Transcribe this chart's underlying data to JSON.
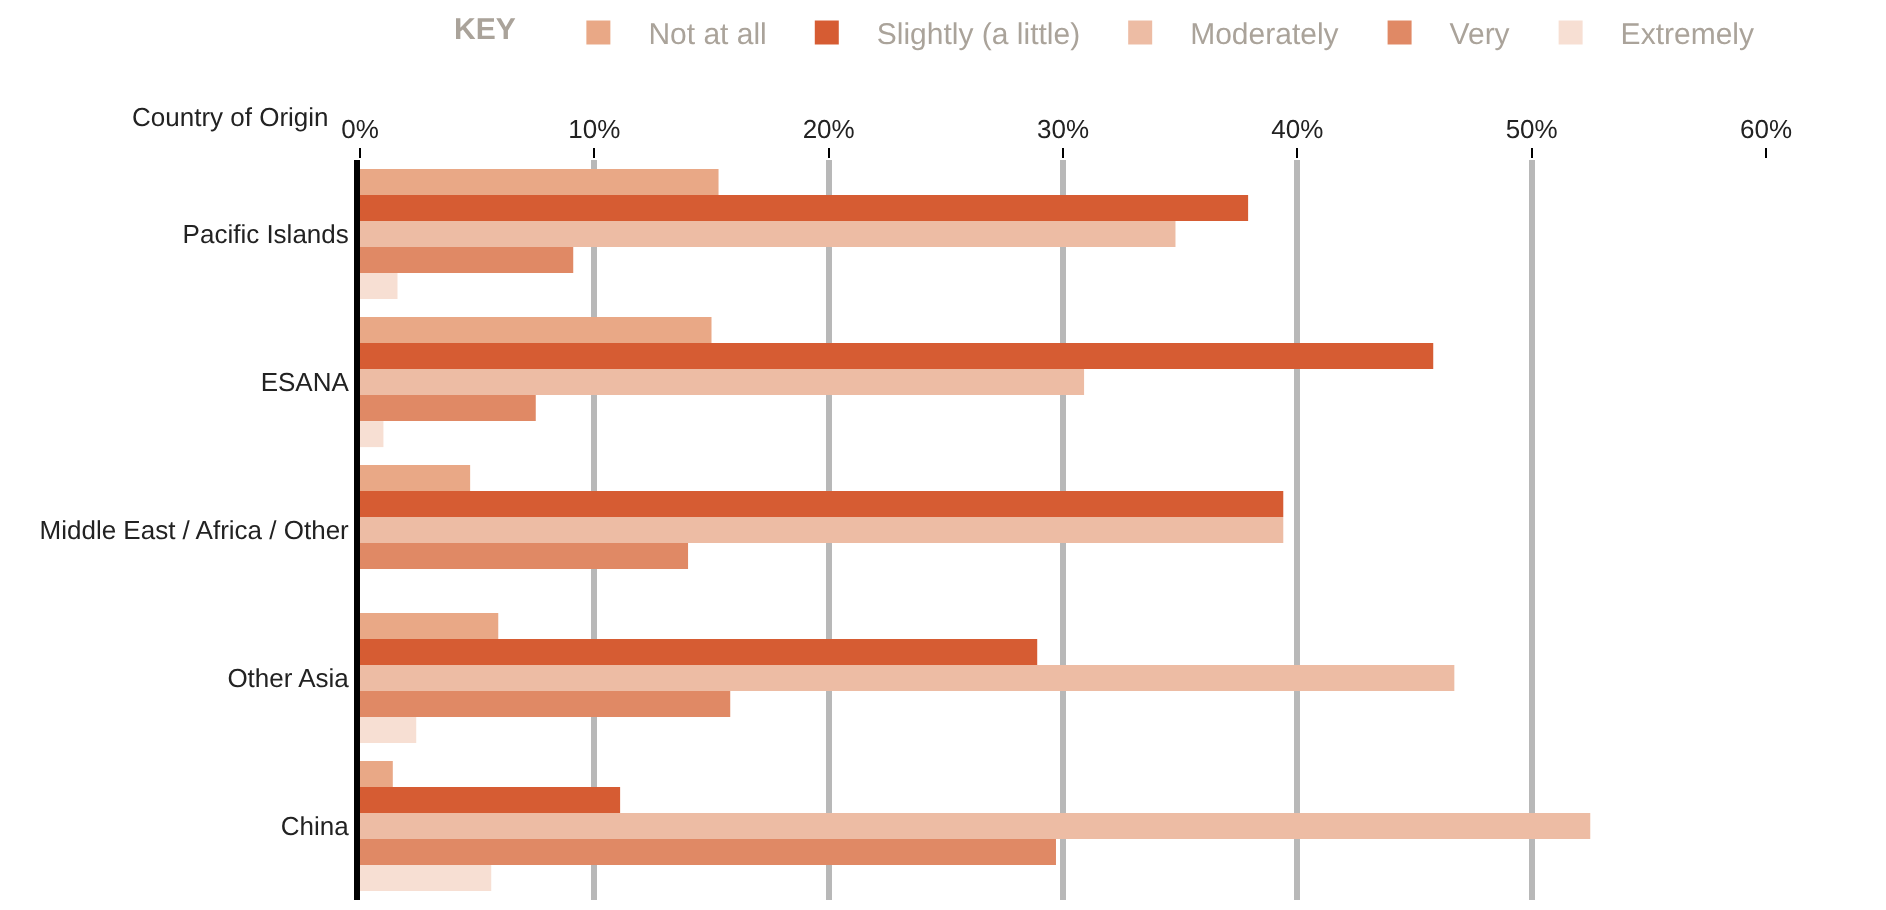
{
  "chart_data": {
    "type": "bar",
    "orientation": "horizontal",
    "ylabel": "Country of Origin",
    "legend_title": "KEY",
    "legend": "top",
    "categories": [
      "Pacific Islands",
      "ESANA",
      "Middle East / Africa / Other",
      "Other Asia",
      "China"
    ],
    "series": [
      {
        "name": "Not at all",
        "color": "#e9a886",
        "values": [
          15.3,
          15.0,
          4.7,
          5.9,
          1.4
        ]
      },
      {
        "name": "Slightly (a little)",
        "color": "#d65c33",
        "values": [
          37.9,
          45.8,
          39.4,
          28.9,
          11.1
        ]
      },
      {
        "name": "Moderately",
        "color": "#edbca4",
        "values": [
          34.8,
          30.9,
          39.4,
          46.7,
          52.5
        ]
      },
      {
        "name": "Very",
        "color": "#e08965",
        "values": [
          9.1,
          7.5,
          14.0,
          15.8,
          29.7
        ]
      },
      {
        "name": "Extremely",
        "color": "#f7dfd3",
        "values": [
          1.6,
          1.0,
          null,
          2.4,
          5.6
        ]
      }
    ],
    "xlim": [
      0,
      60
    ],
    "xticks": [
      {
        "value": 0,
        "label": "0%"
      },
      {
        "value": 10,
        "label": "10%"
      },
      {
        "value": 20,
        "label": "20%"
      },
      {
        "value": 30,
        "label": "30%"
      },
      {
        "value": 40,
        "label": "40%"
      },
      {
        "value": 50,
        "label": "50%"
      },
      {
        "value": 60,
        "label": "60%"
      }
    ],
    "grid": "x"
  }
}
